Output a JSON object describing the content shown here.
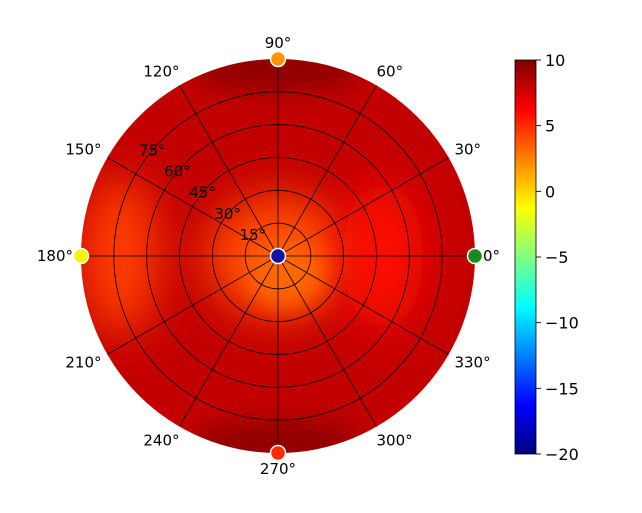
{
  "chart_data": {
    "type": "heatmap",
    "subtype": "polar",
    "grid": true,
    "theta_tick_labels": [
      "0°",
      "30°",
      "60°",
      "90°",
      "120°",
      "150°",
      "180°",
      "210°",
      "240°",
      "270°",
      "300°",
      "330°"
    ],
    "radial_tick_labels": [
      "15°",
      "30°",
      "45°",
      "60°",
      "75°"
    ],
    "radial_ticks": [
      15,
      30,
      45,
      60,
      75
    ],
    "radial_range": [
      0,
      90
    ],
    "colorbar": {
      "colormap": "jet",
      "range": [
        -20,
        10
      ],
      "tick_values": [
        10,
        5,
        0,
        -5,
        -10,
        -15,
        -20
      ],
      "tick_labels": [
        "10",
        "5",
        "0",
        "−5",
        "−10",
        "−15",
        "−20"
      ]
    },
    "background_value": 8,
    "regions": [
      {
        "description": "center",
        "theta": 0,
        "r": 0,
        "value": 4
      },
      {
        "description": "right lobe",
        "theta": 0,
        "r": 48,
        "value": 6
      },
      {
        "description": "left lobe",
        "theta": 180,
        "r": 72,
        "value": 4.5
      },
      {
        "description": "upper dark band",
        "theta": 90,
        "r": 85,
        "value": 9.5
      },
      {
        "description": "lower dark band",
        "theta": 270,
        "r": 85,
        "value": 9.5
      }
    ],
    "markers": [
      {
        "theta": 0,
        "r": 0,
        "color": "#1414a0"
      },
      {
        "theta": 0,
        "r": 90,
        "color": "#1a8a1a"
      },
      {
        "theta": 90,
        "r": 90,
        "color": "#ff9600"
      },
      {
        "theta": 180,
        "r": 90,
        "color": "#f5f500"
      },
      {
        "theta": 270,
        "r": 90,
        "color": "#ff2a00"
      }
    ]
  }
}
